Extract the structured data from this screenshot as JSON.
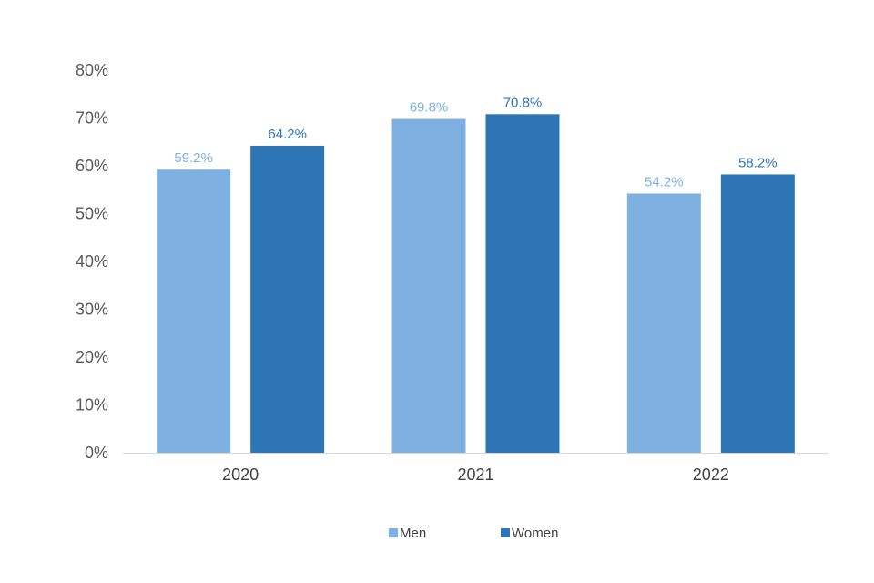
{
  "chart_data": {
    "type": "bar",
    "title": "",
    "xlabel": "",
    "ylabel": "",
    "categories": [
      "2020",
      "2021",
      "2022"
    ],
    "series": [
      {
        "name": "Men",
        "values": [
          59.2,
          69.8,
          54.2
        ],
        "labels": [
          "59.2%",
          "69.8%",
          "54.2%"
        ],
        "color": "#7fb0e2",
        "label_color": "#7fb0e2"
      },
      {
        "name": "Women",
        "values": [
          64.2,
          70.8,
          58.2
        ],
        "labels": [
          "64.2%",
          "70.8%",
          "58.2%"
        ],
        "color": "#2e75b6",
        "label_color": "#2e75b6"
      }
    ],
    "ylim": [
      0,
      80
    ],
    "yticks": [
      "0%",
      "10%",
      "20%",
      "30%",
      "40%",
      "50%",
      "60%",
      "70%",
      "80%"
    ],
    "grid": false,
    "legend": "bottom"
  }
}
